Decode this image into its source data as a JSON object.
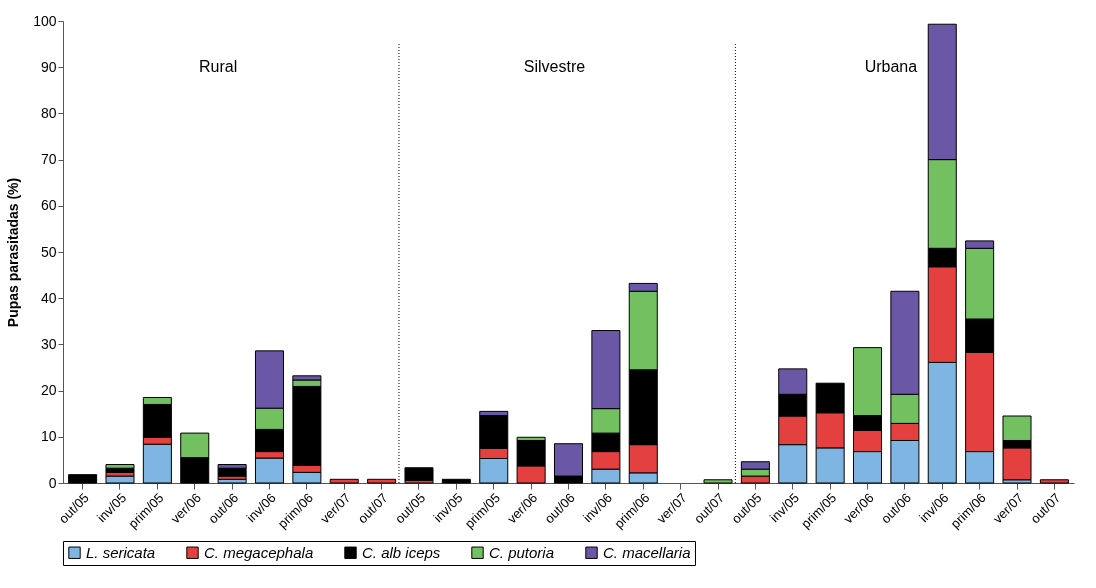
{
  "chart_data": {
    "type": "bar",
    "stacked": true,
    "ylabel": "Pupas parasitadas (%)",
    "categories": [
      "out/05",
      "inv/05",
      "prim/05",
      "ver/06",
      "out/06",
      "inv/06",
      "prim/06",
      "ver/07",
      "out/07",
      "out/05",
      "inv/05",
      "prim/05",
      "ver/06",
      "out/06",
      "inv/06",
      "prim/06",
      "ver/07",
      "out/07",
      "out/05",
      "inv/05",
      "prim/05",
      "ver/06",
      "out/06",
      "inv/06",
      "prim/06",
      "ver/07",
      "out/07"
    ],
    "series": [
      {
        "name": "L. sericata",
        "color": "#7fb5e3",
        "values": [
          null,
          1.5,
          8.4,
          null,
          0.8,
          5.4,
          2.3,
          null,
          null,
          null,
          null,
          5.3,
          null,
          null,
          3.0,
          2.2,
          null,
          null,
          null,
          8.3,
          7.6,
          6.8,
          9.2,
          26.1,
          6.8,
          0.7,
          null
        ]
      },
      {
        "name": "C. megacephala",
        "color": "#e4403f",
        "values": [
          null,
          0.8,
          1.5,
          null,
          0.7,
          1.4,
          1.5,
          0.8,
          0.8,
          0.6,
          null,
          2.2,
          3.7,
          null,
          3.8,
          6.1,
          null,
          null,
          1.5,
          6.2,
          7.6,
          4.6,
          3.7,
          20.7,
          21.5,
          6.9,
          0.7
        ]
      },
      {
        "name": "C. alb iceps",
        "color": "#000000",
        "values": [
          1.8,
          0.9,
          7.1,
          5.5,
          1.7,
          4.8,
          17.1,
          null,
          null,
          2.7,
          0.8,
          7.1,
          5.5,
          1.5,
          4.0,
          16.2,
          null,
          null,
          null,
          4.7,
          6.4,
          3.2,
          null,
          4.0,
          7.2,
          1.6,
          null
        ]
      },
      {
        "name": "C. putoria",
        "color": "#72c05f",
        "values": [
          null,
          0.8,
          1.5,
          5.3,
          null,
          4.6,
          1.4,
          null,
          null,
          null,
          null,
          null,
          0.7,
          null,
          5.3,
          17.0,
          null,
          0.7,
          1.5,
          null,
          null,
          14.7,
          6.3,
          19.2,
          15.3,
          5.3,
          null
        ]
      },
      {
        "name": "C. macellaria",
        "color": "#6a58a6",
        "values": [
          null,
          null,
          null,
          null,
          0.8,
          12.4,
          0.9,
          null,
          null,
          null,
          null,
          0.9,
          null,
          7.0,
          16.9,
          1.7,
          null,
          null,
          1.6,
          5.5,
          null,
          null,
          22.3,
          29.3,
          1.6,
          null,
          null
        ]
      }
    ],
    "annotations": [
      "Rural",
      "Silvestre",
      "Urbana"
    ],
    "ylim": [
      0,
      100
    ],
    "yticks": [
      0,
      10,
      20,
      30,
      40,
      50,
      60,
      70,
      80,
      90,
      100
    ],
    "legend": "bottom"
  }
}
